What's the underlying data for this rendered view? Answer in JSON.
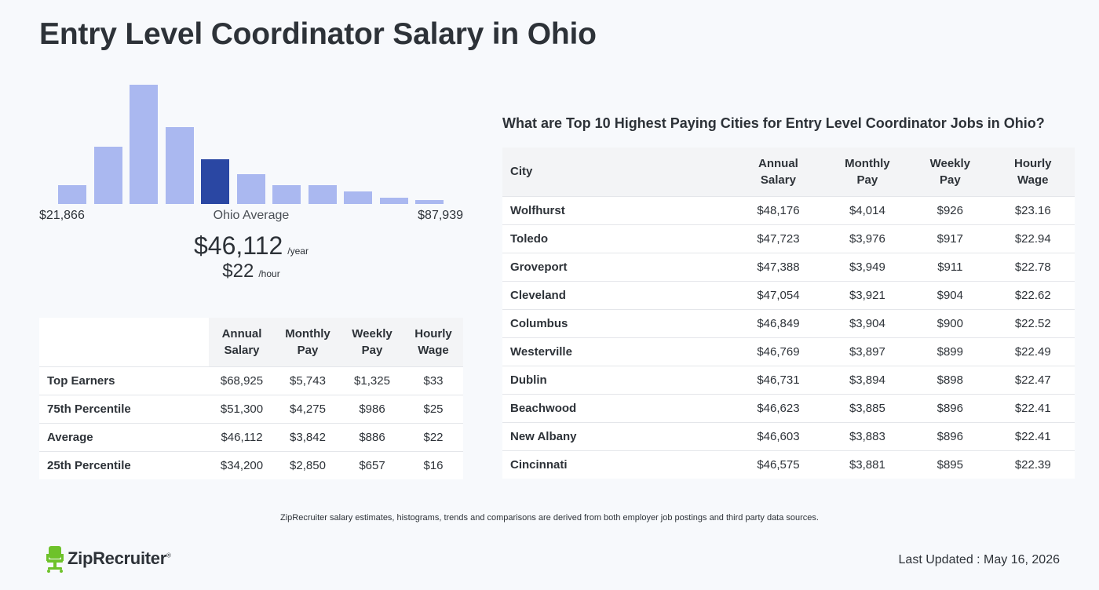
{
  "page": {
    "title": "Entry Level Coordinator Salary in Ohio",
    "disclaimer": "ZipRecruiter salary estimates, histograms, trends and comparisons are derived from both employer job postings and third party data sources.",
    "last_updated": "Last Updated : May 16, 2026",
    "logo_text": "ZipRecruiter"
  },
  "colors": {
    "bar": "#aab8f0",
    "bar_highlight": "#2a47a3",
    "logo_green": "#6ec22b"
  },
  "summary": {
    "min_label": "$21,866",
    "max_label": "$87,939",
    "avg_label": "Ohio Average",
    "avg_year": "$46,112",
    "year_unit": "/year",
    "avg_hour": "$22",
    "hour_unit": "/hour"
  },
  "chart_data": {
    "type": "bar",
    "title": "",
    "xlabel": "",
    "ylabel": "",
    "categories": [
      "1",
      "2",
      "3",
      "4",
      "5",
      "6",
      "7",
      "8",
      "9",
      "10",
      "11"
    ],
    "values": [
      24,
      73,
      152,
      98,
      57,
      38,
      24,
      24,
      16,
      8,
      5
    ],
    "highlight_index": 4,
    "ylim": [
      0,
      152
    ],
    "grid": false
  },
  "percentile_table": {
    "headers": [
      [
        "Annual",
        "Salary"
      ],
      [
        "Monthly",
        "Pay"
      ],
      [
        "Weekly",
        "Pay"
      ],
      [
        "Hourly",
        "Wage"
      ]
    ],
    "rows": [
      {
        "label": "Top Earners",
        "values": [
          "$68,925",
          "$5,743",
          "$1,325",
          "$33"
        ]
      },
      {
        "label": "75th Percentile",
        "values": [
          "$51,300",
          "$4,275",
          "$986",
          "$25"
        ]
      },
      {
        "label": "Average",
        "values": [
          "$46,112",
          "$3,842",
          "$886",
          "$22"
        ]
      },
      {
        "label": "25th Percentile",
        "values": [
          "$34,200",
          "$2,850",
          "$657",
          "$16"
        ]
      }
    ]
  },
  "city_table": {
    "title": "What are Top 10 Highest Paying Cities for Entry Level Coordinator Jobs in Ohio?",
    "city_header": "City",
    "headers": [
      [
        "Annual",
        "Salary"
      ],
      [
        "Monthly",
        "Pay"
      ],
      [
        "Weekly",
        "Pay"
      ],
      [
        "Hourly",
        "Wage"
      ]
    ],
    "rows": [
      {
        "city": "Wolfhurst",
        "values": [
          "$48,176",
          "$4,014",
          "$926",
          "$23.16"
        ]
      },
      {
        "city": "Toledo",
        "values": [
          "$47,723",
          "$3,976",
          "$917",
          "$22.94"
        ]
      },
      {
        "city": "Groveport",
        "values": [
          "$47,388",
          "$3,949",
          "$911",
          "$22.78"
        ]
      },
      {
        "city": "Cleveland",
        "values": [
          "$47,054",
          "$3,921",
          "$904",
          "$22.62"
        ]
      },
      {
        "city": "Columbus",
        "values": [
          "$46,849",
          "$3,904",
          "$900",
          "$22.52"
        ]
      },
      {
        "city": "Westerville",
        "values": [
          "$46,769",
          "$3,897",
          "$899",
          "$22.49"
        ]
      },
      {
        "city": "Dublin",
        "values": [
          "$46,731",
          "$3,894",
          "$898",
          "$22.47"
        ]
      },
      {
        "city": "Beachwood",
        "values": [
          "$46,623",
          "$3,885",
          "$896",
          "$22.41"
        ]
      },
      {
        "city": "New Albany",
        "values": [
          "$46,603",
          "$3,883",
          "$896",
          "$22.41"
        ]
      },
      {
        "city": "Cincinnati",
        "values": [
          "$46,575",
          "$3,881",
          "$895",
          "$22.39"
        ]
      }
    ]
  }
}
